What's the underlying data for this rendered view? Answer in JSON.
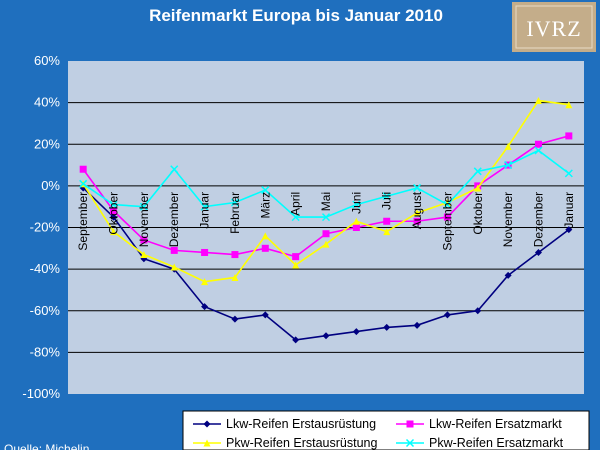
{
  "chart_data": {
    "type": "line",
    "title": "Reifenmarkt Europa bis Januar 2010",
    "xlabel": "",
    "ylabel": "",
    "ylim": [
      -100,
      60
    ],
    "yticks": [
      60,
      40,
      20,
      0,
      -20,
      -40,
      -60,
      -80,
      -100
    ],
    "ytick_suffix": "%",
    "grid": true,
    "legend_position": "bottom-right",
    "categories": [
      "September",
      "Oktober",
      "November",
      "Dezember",
      "Januar",
      "Februar",
      "März",
      "April",
      "Mai",
      "Juni",
      "Juli",
      "August",
      "September",
      "Oktober",
      "November",
      "Dezember",
      "Januar"
    ],
    "series": [
      {
        "name": "Lkw-Reifen Erstausrüstung",
        "color": "#000080",
        "marker": "diamond",
        "values": [
          -1,
          -15,
          -35,
          -40,
          -58,
          -64,
          -62,
          -74,
          -72,
          -70,
          -68,
          -67,
          -62,
          -60,
          -43,
          -32,
          -21
        ]
      },
      {
        "name": "Lkw-Reifen Ersatzmarkt",
        "color": "#ff00ff",
        "marker": "square",
        "values": [
          8,
          -12,
          -26,
          -31,
          -32,
          -33,
          -30,
          -34,
          -23,
          -20,
          -17,
          -17,
          -15,
          0,
          10,
          20,
          24
        ]
      },
      {
        "name": "Pkw-Reifen Erstausrüstung",
        "color": "#ffff00",
        "marker": "triangle",
        "values": [
          1,
          -22,
          -33,
          -39,
          -46,
          -44,
          -24,
          -38,
          -28,
          -17,
          -22,
          -13,
          -8,
          -1,
          19,
          41,
          39
        ]
      },
      {
        "name": "Pkw-Reifen Ersatzmarkt",
        "color": "#00ffff",
        "marker": "x",
        "values": [
          1,
          -9,
          -10,
          8,
          -10,
          -8,
          -2,
          -15,
          -15,
          -9,
          -5,
          -1,
          -9,
          7,
          10,
          17,
          6
        ]
      }
    ]
  },
  "source": "Quelle: Michelin",
  "logo": "IVRZ",
  "colors": {
    "background": "#1f6fbe",
    "plot_area": "#c0cfe3",
    "gridline": "#000000"
  }
}
